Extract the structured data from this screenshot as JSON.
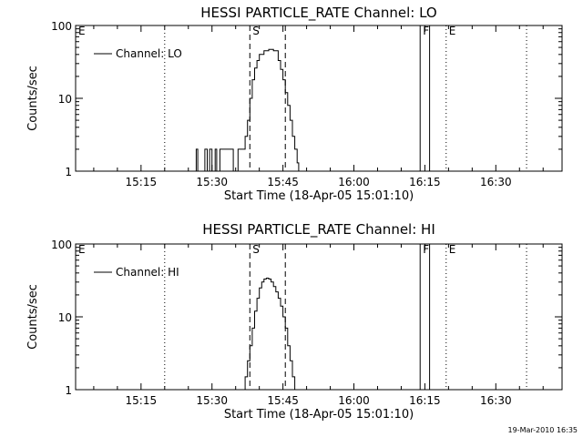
{
  "footer_timestamp": "19-Mar-2010 16:35",
  "chart_data": [
    {
      "type": "line",
      "title": "HESSI PARTICLE_RATE Channel: LO",
      "xlabel": "Start Time (18-Apr-05 15:01:10)",
      "ylabel": "Counts/sec",
      "yscale": "log",
      "ylim": [
        1,
        100
      ],
      "xlim": [
        "15:01:10",
        "16:44:00"
      ],
      "xticks": [
        "15:15",
        "15:30",
        "15:45",
        "16:00",
        "16:15",
        "16:30"
      ],
      "yticks": [
        {
          "value": 1,
          "label": "1"
        },
        {
          "value": 10,
          "label": "10"
        },
        {
          "value": 100,
          "label": "100"
        }
      ],
      "legend": {
        "label": "Channel: LO",
        "position": "top-left"
      },
      "series": [
        {
          "name": "Channel: LO",
          "x": [
            "15:26:20",
            "15:26:40",
            "15:27:00",
            "15:27:20",
            "15:28:30",
            "15:29:00",
            "15:29:30",
            "15:30:00",
            "15:30:20",
            "15:30:40",
            "15:31:00",
            "15:31:20",
            "15:31:40",
            "15:32:00",
            "15:32:30",
            "15:33:00",
            "15:33:30",
            "15:34:00",
            "15:34:30",
            "15:35:00",
            "15:35:30",
            "15:36:00",
            "15:36:30",
            "15:37:00",
            "15:37:30",
            "15:38:00",
            "15:38:30",
            "15:39:00",
            "15:39:30",
            "15:40:00",
            "15:41:00",
            "15:42:00",
            "15:43:00",
            "15:44:00",
            "15:44:30",
            "15:45:00",
            "15:45:30",
            "15:46:00",
            "15:46:30",
            "15:47:00",
            "15:47:30",
            "15:48:00",
            "15:48:20"
          ],
          "y": [
            1,
            2,
            1,
            1,
            2,
            1,
            2,
            1,
            1,
            2,
            1,
            1,
            2,
            2,
            2,
            2,
            2,
            2,
            1,
            1,
            2,
            2,
            2,
            3,
            5,
            10,
            18,
            26,
            33,
            40,
            45,
            47,
            45,
            33,
            25,
            18,
            12,
            8,
            5,
            3,
            2,
            1.3,
            1
          ]
        }
      ],
      "annotations": [
        {
          "label": "E",
          "time": "15:01:10",
          "style": "dotted"
        },
        {
          "label": "",
          "time": "15:20:00",
          "style": "dotted"
        },
        {
          "label": "S",
          "time": "15:38:00",
          "style": "dashed"
        },
        {
          "label": "",
          "time": "15:45:30",
          "style": "dashed"
        },
        {
          "label": "F",
          "time": "16:14:00",
          "style": "solid"
        },
        {
          "label": "",
          "time": "16:16:00",
          "style": "solid"
        },
        {
          "label": "E",
          "time": "16:19:30",
          "style": "dotted"
        },
        {
          "label": "",
          "time": "16:36:30",
          "style": "dotted"
        }
      ]
    },
    {
      "type": "line",
      "title": "HESSI PARTICLE_RATE Channel: HI",
      "xlabel": "Start Time (18-Apr-05 15:01:10)",
      "ylabel": "Counts/sec",
      "yscale": "log",
      "ylim": [
        1,
        100
      ],
      "xlim": [
        "15:01:10",
        "16:44:00"
      ],
      "xticks": [
        "15:15",
        "15:30",
        "15:45",
        "16:00",
        "16:15",
        "16:30"
      ],
      "yticks": [
        {
          "value": 1,
          "label": "1"
        },
        {
          "value": 10,
          "label": "10"
        },
        {
          "value": 100,
          "label": "100"
        }
      ],
      "legend": {
        "label": "Channel: HI",
        "position": "top-left"
      },
      "series": [
        {
          "name": "Channel: HI",
          "x": [
            "15:36:40",
            "15:37:00",
            "15:37:30",
            "15:38:00",
            "15:38:30",
            "15:39:00",
            "15:39:30",
            "15:40:00",
            "15:40:30",
            "15:41:00",
            "15:41:30",
            "15:42:00",
            "15:42:30",
            "15:43:00",
            "15:43:30",
            "15:44:00",
            "15:44:30",
            "15:45:00",
            "15:45:30",
            "15:46:00",
            "15:46:30",
            "15:47:00",
            "15:47:30"
          ],
          "y": [
            1,
            1.5,
            2.5,
            4,
            7,
            12,
            18,
            25,
            30,
            33,
            34,
            33,
            30,
            26,
            22,
            18,
            14,
            10,
            7,
            4,
            2.5,
            1.5,
            1
          ]
        }
      ],
      "annotations": [
        {
          "label": "E",
          "time": "15:01:10",
          "style": "dotted"
        },
        {
          "label": "",
          "time": "15:20:00",
          "style": "dotted"
        },
        {
          "label": "S",
          "time": "15:38:00",
          "style": "dashed"
        },
        {
          "label": "",
          "time": "15:45:30",
          "style": "dashed"
        },
        {
          "label": "F",
          "time": "16:14:00",
          "style": "solid"
        },
        {
          "label": "",
          "time": "16:16:00",
          "style": "solid"
        },
        {
          "label": "E",
          "time": "16:19:30",
          "style": "dotted"
        },
        {
          "label": "",
          "time": "16:36:30",
          "style": "dotted"
        }
      ]
    }
  ]
}
